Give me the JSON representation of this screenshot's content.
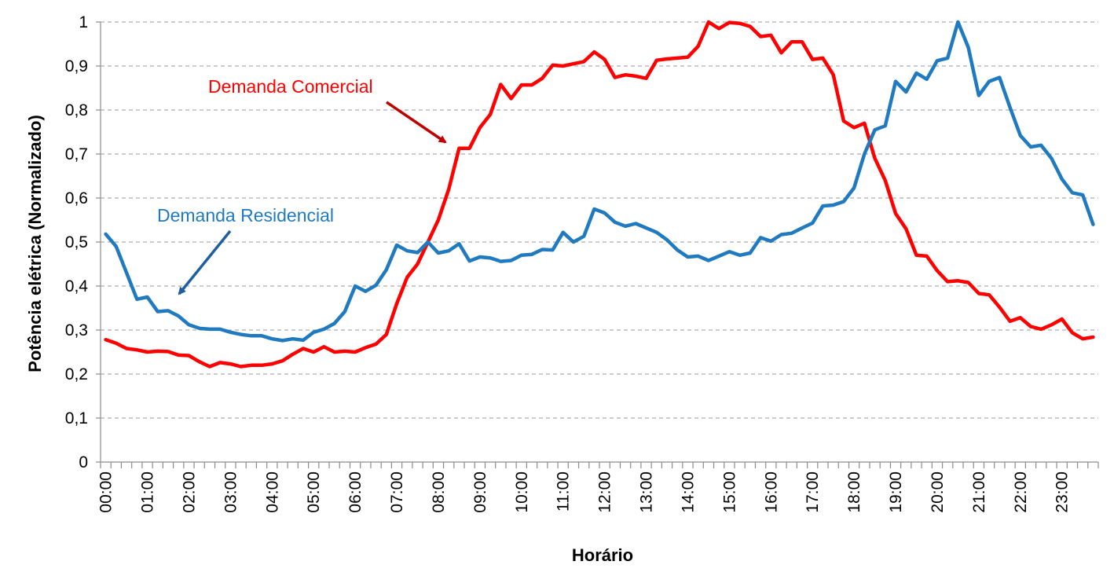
{
  "chart_data": {
    "type": "line",
    "title": "",
    "xlabel": "Horário",
    "ylabel": "Potência elétrica (Normalizado)",
    "ylim": [
      0,
      1
    ],
    "yticks": [
      "0",
      "0,1",
      "0,2",
      "0,3",
      "0,4",
      "0,5",
      "0,6",
      "0,7",
      "0,8",
      "0,9",
      "1"
    ],
    "xtick_labels": [
      "00:00",
      "01:00",
      "02:00",
      "03:00",
      "04:00",
      "05:00",
      "06:00",
      "07:00",
      "08:00",
      "09:00",
      "10:00",
      "11:00",
      "12:00",
      "13:00",
      "14:00",
      "15:00",
      "16:00",
      "17:00",
      "18:00",
      "19:00",
      "20:00",
      "21:00",
      "22:00",
      "23:00"
    ],
    "x_interval_minutes": 15,
    "grid": "horizontal dashed",
    "legend": "none",
    "annotations": [
      {
        "text": "Demanda Comercial",
        "color": "#ff0000",
        "series": 0
      },
      {
        "text": "Demanda Residencial",
        "color": "#1f7ac0",
        "series": 1
      }
    ],
    "series": [
      {
        "name": "Demanda Comercial",
        "color": "#ff0000",
        "values": [
          0.278,
          0.27,
          0.258,
          0.255,
          0.25,
          0.252,
          0.251,
          0.243,
          0.242,
          0.228,
          0.217,
          0.226,
          0.223,
          0.217,
          0.22,
          0.22,
          0.223,
          0.23,
          0.245,
          0.258,
          0.25,
          0.262,
          0.25,
          0.252,
          0.25,
          0.26,
          0.268,
          0.29,
          0.36,
          0.42,
          0.45,
          0.5,
          0.55,
          0.62,
          0.713,
          0.713,
          0.76,
          0.79,
          0.858,
          0.826,
          0.857,
          0.857,
          0.872,
          0.902,
          0.9,
          0.905,
          0.91,
          0.932,
          0.915,
          0.874,
          0.88,
          0.877,
          0.872,
          0.913,
          0.916,
          0.918,
          0.92,
          0.945,
          1.0,
          0.985,
          0.999,
          0.997,
          0.99,
          0.967,
          0.97,
          0.93,
          0.955,
          0.955,
          0.915,
          0.918,
          0.88,
          0.775,
          0.76,
          0.77,
          0.69,
          0.64,
          0.565,
          0.53,
          0.47,
          0.468,
          0.435,
          0.41,
          0.412,
          0.408,
          0.383,
          0.38,
          0.352,
          0.32,
          0.328,
          0.308,
          0.302,
          0.312,
          0.325,
          0.294,
          0.28,
          0.284
        ]
      },
      {
        "name": "Demanda Residencial",
        "color": "#1f7ac0",
        "values": [
          0.518,
          0.49,
          0.43,
          0.37,
          0.375,
          0.342,
          0.344,
          0.332,
          0.312,
          0.304,
          0.302,
          0.302,
          0.295,
          0.29,
          0.287,
          0.287,
          0.28,
          0.276,
          0.28,
          0.277,
          0.295,
          0.302,
          0.315,
          0.342,
          0.4,
          0.388,
          0.402,
          0.437,
          0.493,
          0.48,
          0.476,
          0.5,
          0.475,
          0.48,
          0.496,
          0.457,
          0.466,
          0.464,
          0.456,
          0.458,
          0.47,
          0.472,
          0.483,
          0.482,
          0.522,
          0.5,
          0.513,
          0.575,
          0.566,
          0.545,
          0.536,
          0.542,
          0.532,
          0.522,
          0.505,
          0.482,
          0.466,
          0.468,
          0.458,
          0.468,
          0.478,
          0.47,
          0.475,
          0.51,
          0.502,
          0.517,
          0.52,
          0.532,
          0.543,
          0.582,
          0.584,
          0.592,
          0.623,
          0.7,
          0.755,
          0.764,
          0.865,
          0.841,
          0.884,
          0.87,
          0.912,
          0.918,
          1.0,
          0.942,
          0.833,
          0.865,
          0.874,
          0.806,
          0.742,
          0.716,
          0.72,
          0.69,
          0.643,
          0.612,
          0.607,
          0.54
        ]
      }
    ]
  }
}
